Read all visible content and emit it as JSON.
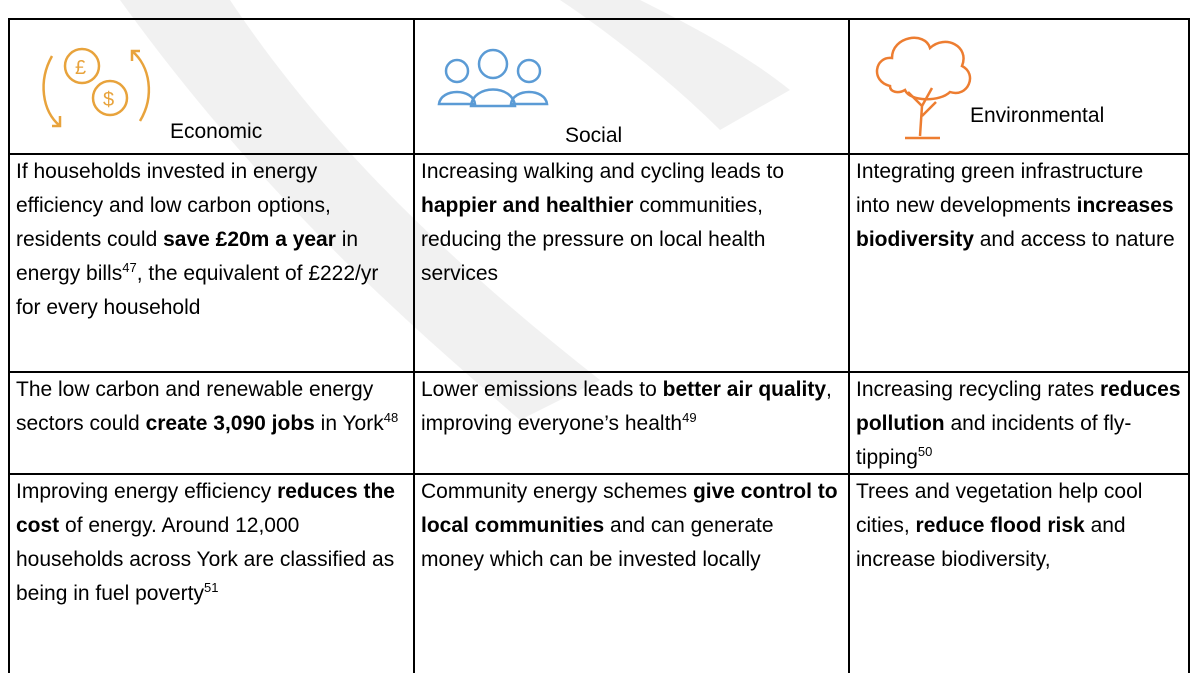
{
  "header": [
    "Economic",
    "Social",
    "Environmental"
  ],
  "table": {
    "rows": [
      [
        [
          {
            "t": "If households invested in energy efficiency and low carbon options, residents could "
          },
          {
            "b": "save £20m a year"
          },
          {
            "t": " in energy bills"
          },
          {
            "sup": "47"
          },
          {
            "t": ", the equivalent of £222/yr for every household"
          }
        ],
        [
          {
            "t": "Increasing walking and cycling leads to "
          },
          {
            "b": "happier and healthier"
          },
          {
            "t": " communities, reducing the pressure on local health services"
          }
        ],
        [
          {
            "t": "Integrating green infrastructure into new developments "
          },
          {
            "b": "increases biodiversity"
          },
          {
            "t": " and access to nature"
          }
        ]
      ],
      [
        [
          {
            "t": "The low carbon and renewable energy sectors could "
          },
          {
            "b": "create 3,090 jobs"
          },
          {
            "t": " in York"
          },
          {
            "sup": "48"
          }
        ],
        [
          {
            "t": "Lower emissions leads to "
          },
          {
            "b": "better air quality"
          },
          {
            "t": ", improving everyone’s health"
          },
          {
            "sup": "49"
          }
        ],
        [
          {
            "t": "Increasing recycling rates "
          },
          {
            "b": "reduces pollution"
          },
          {
            "t": " and incidents of fly-tipping"
          },
          {
            "sup": "50"
          }
        ]
      ],
      [
        [
          {
            "t": "Improving energy efficiency "
          },
          {
            "b": "reduces the cost"
          },
          {
            "t": " of energy. Around 12,000 households across York are classified as being in fuel poverty"
          },
          {
            "sup": "51"
          }
        ],
        [
          {
            "t": "Community energy schemes "
          },
          {
            "b": "give control to local communities"
          },
          {
            "t": " and can generate money which can be invested locally"
          }
        ],
        [
          {
            "t": "Trees and vegetation help cool cities, "
          },
          {
            "b": "reduce flood risk"
          },
          {
            "t": " and increase biodiversity,"
          }
        ]
      ]
    ]
  }
}
